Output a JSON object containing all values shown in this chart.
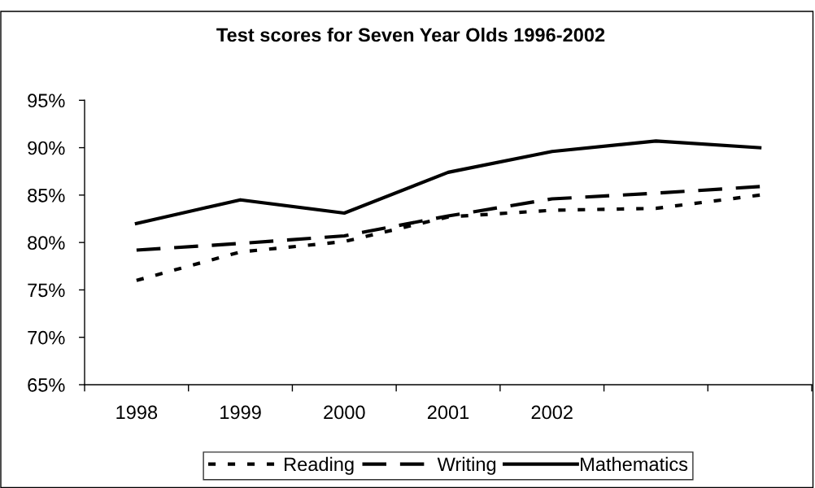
{
  "chart_data": {
    "type": "line",
    "title": "Test scores for Seven Year Olds 1996-2002",
    "categories": [
      "1998",
      "1999",
      "2000",
      "2001",
      "2002",
      null,
      null
    ],
    "series": [
      {
        "name": "Reading",
        "color": "#000000",
        "line_style": "dotted",
        "values": [
          76.0,
          79.0,
          80.1,
          82.7,
          83.4,
          83.6,
          85.0
        ]
      },
      {
        "name": "Writing",
        "color": "#000000",
        "line_style": "dashed",
        "values": [
          79.2,
          79.9,
          80.7,
          82.8,
          84.6,
          85.2,
          85.9
        ]
      },
      {
        "name": "Mathematics",
        "color": "#000000",
        "line_style": "solid",
        "values": [
          82.0,
          84.5,
          83.1,
          87.4,
          89.6,
          90.7,
          90.0
        ]
      }
    ],
    "ylim": [
      65,
      95
    ],
    "yticks": [
      {
        "value": 65,
        "label": "65%"
      },
      {
        "value": 70,
        "label": "70%"
      },
      {
        "value": 75,
        "label": "75%"
      },
      {
        "value": 80,
        "label": "80%"
      },
      {
        "value": 85,
        "label": "85%"
      },
      {
        "value": 90,
        "label": "90%"
      },
      {
        "value": 95,
        "label": "95%"
      }
    ],
    "legend": "bottom"
  }
}
